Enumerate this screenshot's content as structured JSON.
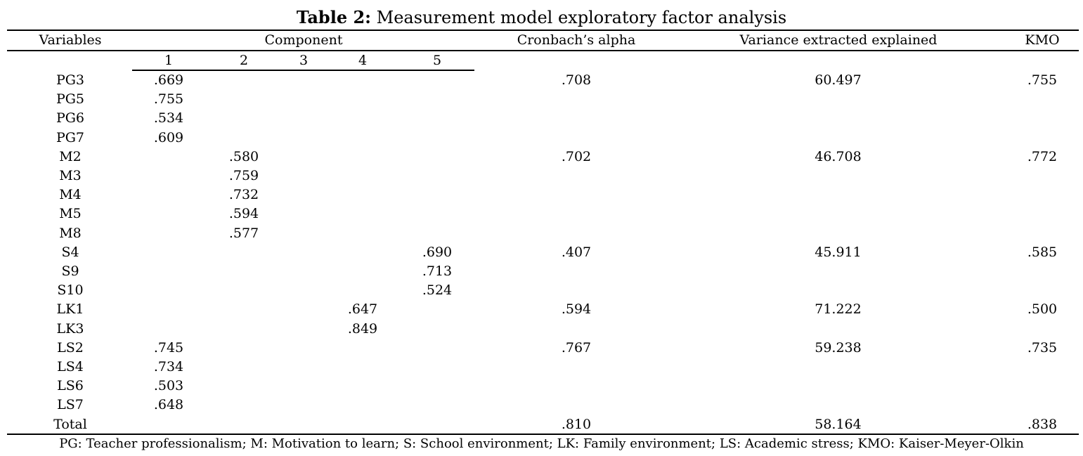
{
  "caption": {
    "label": "Table 2:",
    "text": "Measurement model exploratory factor analysis"
  },
  "headers": {
    "variables": "Variables",
    "component": "Component",
    "cronbach": "Cronbach’s alpha",
    "variance": "Variance extracted explained",
    "kmo": "KMO",
    "components": [
      "1",
      "2",
      "3",
      "4",
      "5"
    ]
  },
  "rows": [
    {
      "var": "PG3",
      "c1": ".669",
      "c2": "",
      "c3": "",
      "c4": "",
      "c5": "",
      "alpha": ".708",
      "variance": "60.497",
      "kmo": ".755"
    },
    {
      "var": "PG5",
      "c1": ".755",
      "c2": "",
      "c3": "",
      "c4": "",
      "c5": "",
      "alpha": "",
      "variance": "",
      "kmo": ""
    },
    {
      "var": "PG6",
      "c1": ".534",
      "c2": "",
      "c3": "",
      "c4": "",
      "c5": "",
      "alpha": "",
      "variance": "",
      "kmo": ""
    },
    {
      "var": "PG7",
      "c1": ".609",
      "c2": "",
      "c3": "",
      "c4": "",
      "c5": "",
      "alpha": "",
      "variance": "",
      "kmo": ""
    },
    {
      "var": "M2",
      "c1": "",
      "c2": ".580",
      "c3": "",
      "c4": "",
      "c5": "",
      "alpha": ".702",
      "variance": "46.708",
      "kmo": ".772"
    },
    {
      "var": "M3",
      "c1": "",
      "c2": ".759",
      "c3": "",
      "c4": "",
      "c5": "",
      "alpha": "",
      "variance": "",
      "kmo": ""
    },
    {
      "var": "M4",
      "c1": "",
      "c2": ".732",
      "c3": "",
      "c4": "",
      "c5": "",
      "alpha": "",
      "variance": "",
      "kmo": ""
    },
    {
      "var": "M5",
      "c1": "",
      "c2": ".594",
      "c3": "",
      "c4": "",
      "c5": "",
      "alpha": "",
      "variance": "",
      "kmo": ""
    },
    {
      "var": "M8",
      "c1": "",
      "c2": ".577",
      "c3": "",
      "c4": "",
      "c5": "",
      "alpha": "",
      "variance": "",
      "kmo": ""
    },
    {
      "var": "S4",
      "c1": "",
      "c2": "",
      "c3": "",
      "c4": "",
      "c5": ".690",
      "alpha": ".407",
      "variance": "45.911",
      "kmo": ".585"
    },
    {
      "var": "S9",
      "c1": "",
      "c2": "",
      "c3": "",
      "c4": "",
      "c5": ".713",
      "alpha": "",
      "variance": "",
      "kmo": ""
    },
    {
      "var": "S10",
      "c1": "",
      "c2": "",
      "c3": "",
      "c4": "",
      "c5": ".524",
      "alpha": "",
      "variance": "",
      "kmo": ""
    },
    {
      "var": "LK1",
      "c1": "",
      "c2": "",
      "c3": "",
      "c4": ".647",
      "c5": "",
      "alpha": ".594",
      "variance": "71.222",
      "kmo": ".500"
    },
    {
      "var": "LK3",
      "c1": "",
      "c2": "",
      "c3": "",
      "c4": ".849",
      "c5": "",
      "alpha": "",
      "variance": "",
      "kmo": ""
    },
    {
      "var": "LS2",
      "c1": ".745",
      "c2": "",
      "c3": "",
      "c4": "",
      "c5": "",
      "alpha": ".767",
      "variance": "59.238",
      "kmo": ".735"
    },
    {
      "var": "LS4",
      "c1": ".734",
      "c2": "",
      "c3": "",
      "c4": "",
      "c5": "",
      "alpha": "",
      "variance": "",
      "kmo": ""
    },
    {
      "var": "LS6",
      "c1": ".503",
      "c2": "",
      "c3": "",
      "c4": "",
      "c5": "",
      "alpha": "",
      "variance": "",
      "kmo": ""
    },
    {
      "var": "LS7",
      "c1": ".648",
      "c2": "",
      "c3": "",
      "c4": "",
      "c5": "",
      "alpha": "",
      "variance": "",
      "kmo": ""
    },
    {
      "var": "Total",
      "c1": "",
      "c2": "",
      "c3": "",
      "c4": "",
      "c5": "",
      "alpha": ".810",
      "variance": "58.164",
      "kmo": ".838"
    }
  ],
  "footnote": "PG: Teacher professionalism; M: Motivation to learn; S: School environment; LK: Family environment; LS: Academic stress; KMO: Kaiser-Meyer-Olkin"
}
